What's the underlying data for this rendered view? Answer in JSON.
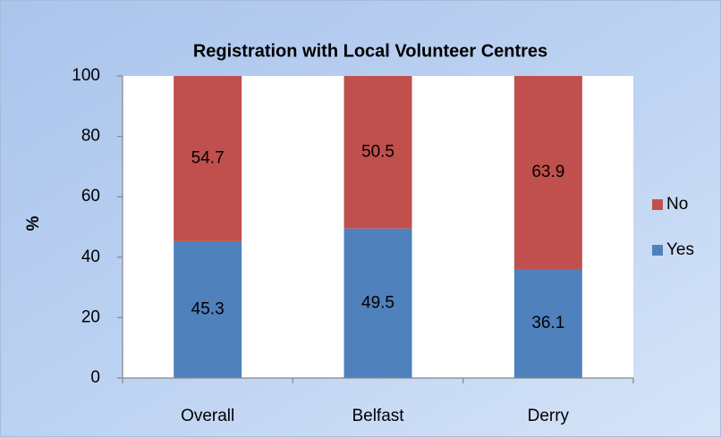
{
  "chart_data": {
    "type": "stacked_bar",
    "title": "Registration with Local Volunteer Centres",
    "y_label": "%",
    "categories": [
      "Overall",
      "Belfast",
      "Derry"
    ],
    "series": [
      {
        "name": "Yes",
        "color": "#4f81bd",
        "values": [
          45.3,
          49.5,
          36.1
        ]
      },
      {
        "name": "No",
        "color": "#c0504d",
        "values": [
          54.7,
          50.5,
          63.9
        ]
      }
    ],
    "ylim": [
      0,
      100
    ],
    "yticks": [
      0,
      20,
      40,
      60,
      80,
      100
    ],
    "grid": false,
    "legend": "right"
  }
}
